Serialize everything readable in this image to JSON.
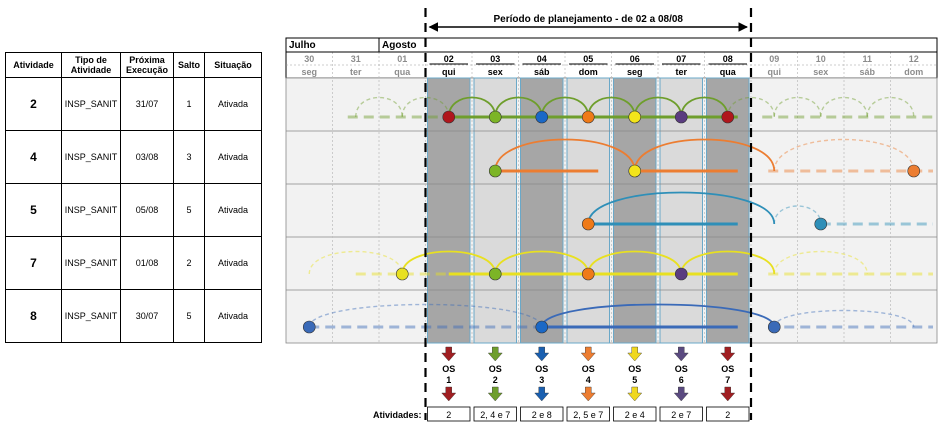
{
  "planning_period": {
    "label": "Período  de planejamento - de 02 a 08/08"
  },
  "table": {
    "headers": [
      "Atividade",
      "Tipo de Atividade",
      "Próxima Execução",
      "Salto",
      "Situação"
    ],
    "rows": [
      {
        "atividade": "2",
        "tipo": "INSP_SANIT",
        "proxima": "31/07",
        "salto": "1",
        "situacao": "Ativada"
      },
      {
        "atividade": "4",
        "tipo": "INSP_SANIT",
        "proxima": "03/08",
        "salto": "3",
        "situacao": "Ativada"
      },
      {
        "atividade": "5",
        "tipo": "INSP_SANIT",
        "proxima": "05/08",
        "salto": "5",
        "situacao": "Ativada"
      },
      {
        "atividade": "7",
        "tipo": "INSP_SANIT",
        "proxima": "01/08",
        "salto": "2",
        "situacao": "Ativada"
      },
      {
        "atividade": "8",
        "tipo": "INSP_SANIT",
        "proxima": "30/07",
        "salto": "5",
        "situacao": "Ativada"
      }
    ]
  },
  "months": [
    {
      "label": "Julho"
    },
    {
      "label": "Agosto"
    }
  ],
  "days": [
    {
      "num": "30",
      "dow": "seg"
    },
    {
      "num": "31",
      "dow": "ter"
    },
    {
      "num": "01",
      "dow": "qua"
    },
    {
      "num": "02",
      "dow": "qui"
    },
    {
      "num": "03",
      "dow": "sex"
    },
    {
      "num": "04",
      "dow": "sáb"
    },
    {
      "num": "05",
      "dow": "dom"
    },
    {
      "num": "06",
      "dow": "seg"
    },
    {
      "num": "07",
      "dow": "ter"
    },
    {
      "num": "08",
      "dow": "qua"
    },
    {
      "num": "09",
      "dow": "qui"
    },
    {
      "num": "10",
      "dow": "sex"
    },
    {
      "num": "11",
      "dow": "sáb"
    },
    {
      "num": "12",
      "dow": "dom"
    }
  ],
  "colors": {
    "row_2": "#6e9e2c",
    "row_4": "#ec7d31",
    "row_5": "#2e8fb8",
    "row_7": "#e8e020",
    "row_8": "#3a6ab8",
    "shade_dark": "#a6a6a6",
    "shade_light": "#dadada",
    "marker_red": "#b0161c",
    "marker_green": "#7cb526",
    "marker_blue": "#1a68c6",
    "marker_orange": "#ef7a18",
    "marker_yellow": "#f3e51a",
    "marker_purple": "#5a3c80"
  },
  "os_items": [
    {
      "os": "OS",
      "num": "1",
      "arrow_color": "#a01f22",
      "atividades": "2"
    },
    {
      "os": "OS",
      "num": "2",
      "arrow_color": "#6e9e2c",
      "atividades": "2, 4 e 7"
    },
    {
      "os": "OS",
      "num": "3",
      "arrow_color": "#1a5fb0",
      "atividades": "2 e 8"
    },
    {
      "os": "OS",
      "num": "4",
      "arrow_color": "#ec7d31",
      "atividades": "2, 5 e 7"
    },
    {
      "os": "OS",
      "num": "5",
      "arrow_color": "#f0d81e",
      "atividades": "2 e 4"
    },
    {
      "os": "OS",
      "num": "6",
      "arrow_color": "#5a4a80",
      "atividades": "2 e 7"
    },
    {
      "os": "OS",
      "num": "7",
      "arrow_color": "#a01f22",
      "atividades": "2"
    }
  ],
  "atividades_label": "Atividades:"
}
